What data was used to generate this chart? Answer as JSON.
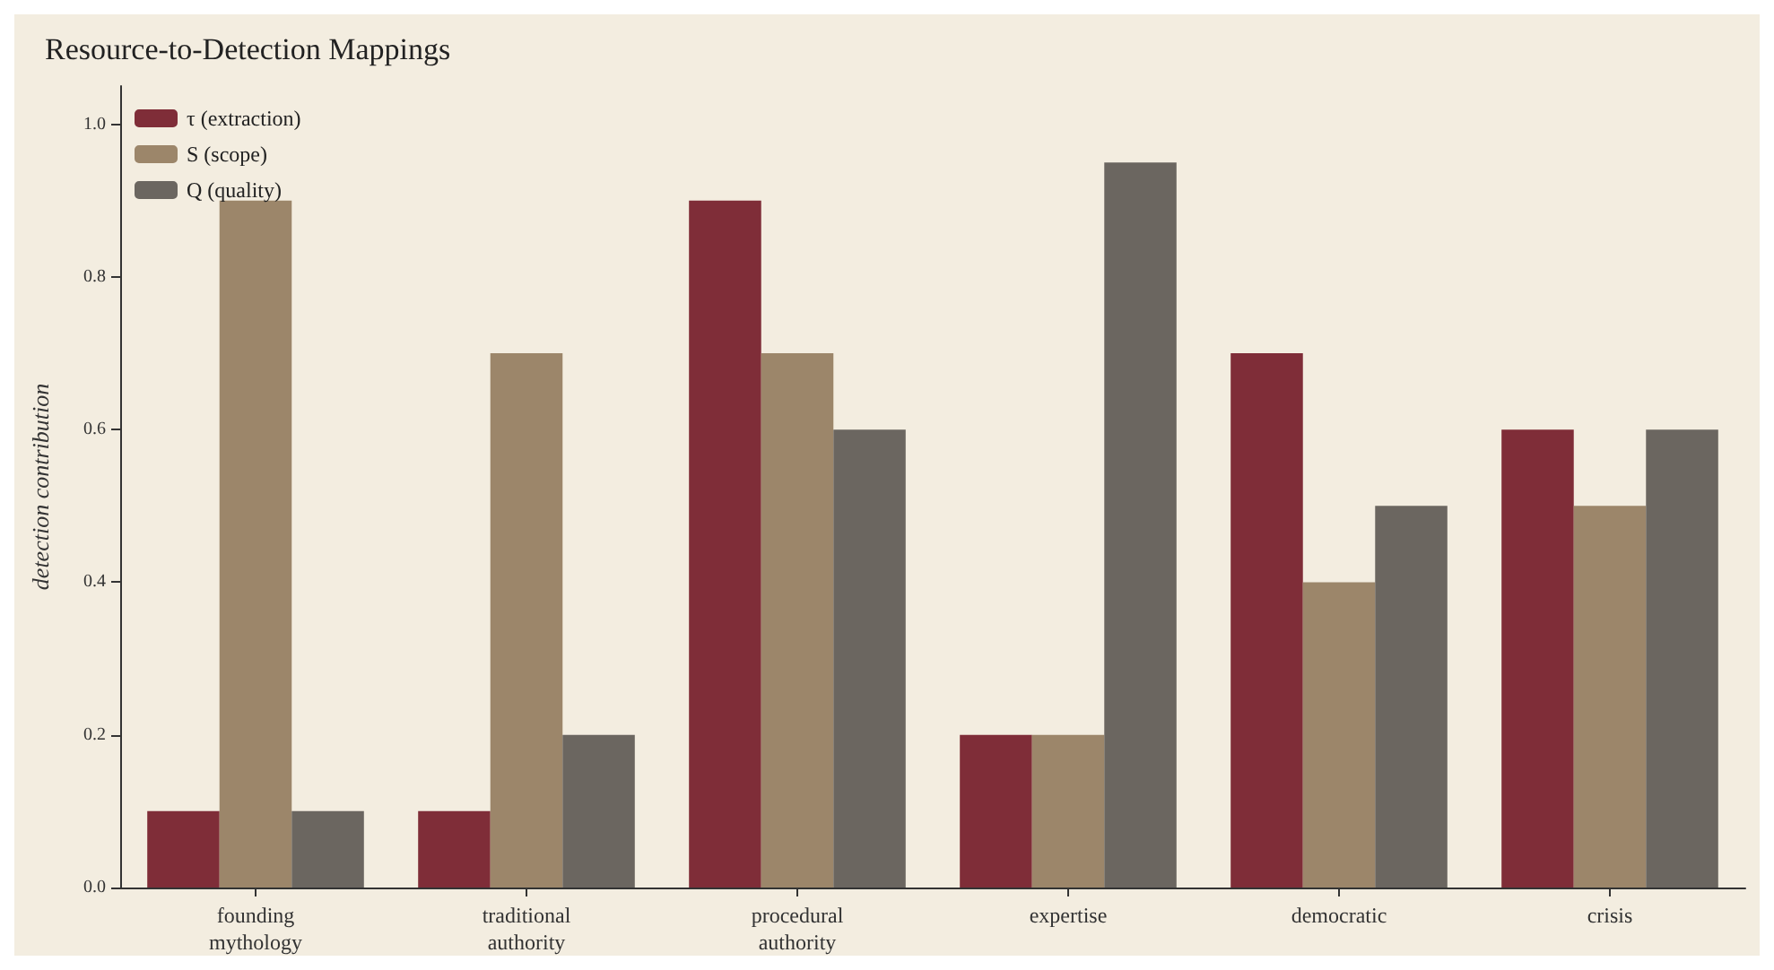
{
  "chart_data": {
    "type": "bar",
    "title": "Resource-to-Detection Mappings",
    "ylabel": "detection contribution",
    "categories": [
      "founding\nmythology",
      "traditional\nauthority",
      "procedural\nauthority",
      "expertise",
      "democratic",
      "crisis"
    ],
    "series": [
      {
        "name": "τ (extraction)",
        "color": "#7f2d38",
        "values": [
          0.1,
          0.1,
          0.9,
          0.2,
          0.7,
          0.6
        ]
      },
      {
        "name": "S (scope)",
        "color": "#9c866a",
        "values": [
          0.9,
          0.7,
          0.7,
          0.2,
          0.4,
          0.5
        ]
      },
      {
        "name": "Q (quality)",
        "color": "#6b6660",
        "values": [
          0.1,
          0.2,
          0.6,
          0.95,
          0.5,
          0.6
        ]
      }
    ],
    "ylim": [
      0,
      1.05
    ],
    "yticks": [
      {
        "value": 0,
        "label": "0.0"
      },
      {
        "value": 0.2,
        "label": "0.2"
      },
      {
        "value": 0.4,
        "label": "0.4"
      },
      {
        "value": 0.6,
        "label": "0.6"
      },
      {
        "value": 0.8,
        "label": "0.8"
      },
      {
        "value": 1,
        "label": "1.0"
      }
    ],
    "grid": false,
    "legend": "top left"
  }
}
